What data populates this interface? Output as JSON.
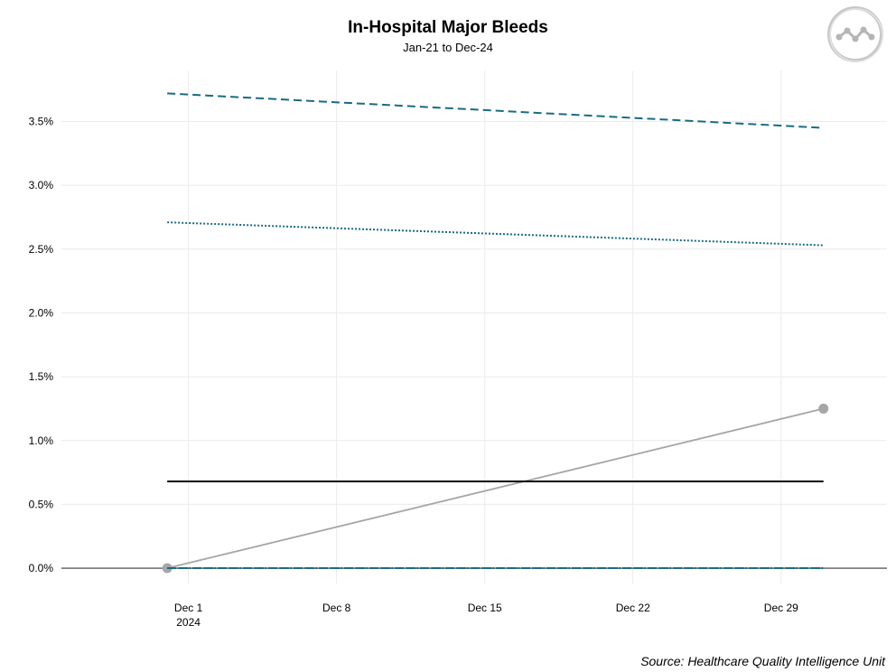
{
  "header": {
    "title": "In-Hospital Major Bleeds",
    "subtitle": "Jan-21 to Dec-24"
  },
  "footer": {
    "source": "Source: Healthcare Quality Intelligence Unit"
  },
  "logo": {
    "icon": "run-chart-logo-icon"
  },
  "chart_data": {
    "type": "line",
    "title": "In-Hospital Major Bleeds",
    "subtitle": "Jan-21 to Dec-24",
    "xlabel": "",
    "ylabel": "",
    "x_ticks": [
      "Dec 1",
      "Dec 8",
      "Dec 15",
      "Dec 22",
      "Dec 29"
    ],
    "x_tick_year": "2024",
    "y_ticks": [
      "0.0%",
      "0.5%",
      "1.0%",
      "1.5%",
      "2.0%",
      "2.5%",
      "3.0%",
      "3.5%"
    ],
    "ylim": [
      -0.0012,
      0.039
    ],
    "x": [
      "2024-11-30",
      "2024-12-31"
    ],
    "series": [
      {
        "values": [
          0.0,
          0.0125
        ],
        "style": "solid",
        "color": "#a6a6a6",
        "markers": true
      },
      {
        "values": [
          0.0068,
          0.0068
        ],
        "style": "solid",
        "color": "#000000"
      },
      {
        "values": [
          0.0372,
          0.0345
        ],
        "style": "dashed",
        "color": "#1a6b82"
      },
      {
        "values": [
          0.0271,
          0.0253
        ],
        "style": "dotted",
        "color": "#1a6b82"
      },
      {
        "values": [
          0.0,
          0.0
        ],
        "style": "dotted",
        "color": "#1a6b82"
      },
      {
        "values": [
          0.0,
          0.0
        ],
        "style": "dashed",
        "color": "#1a6b82"
      }
    ],
    "grid": true,
    "legend": "none"
  }
}
